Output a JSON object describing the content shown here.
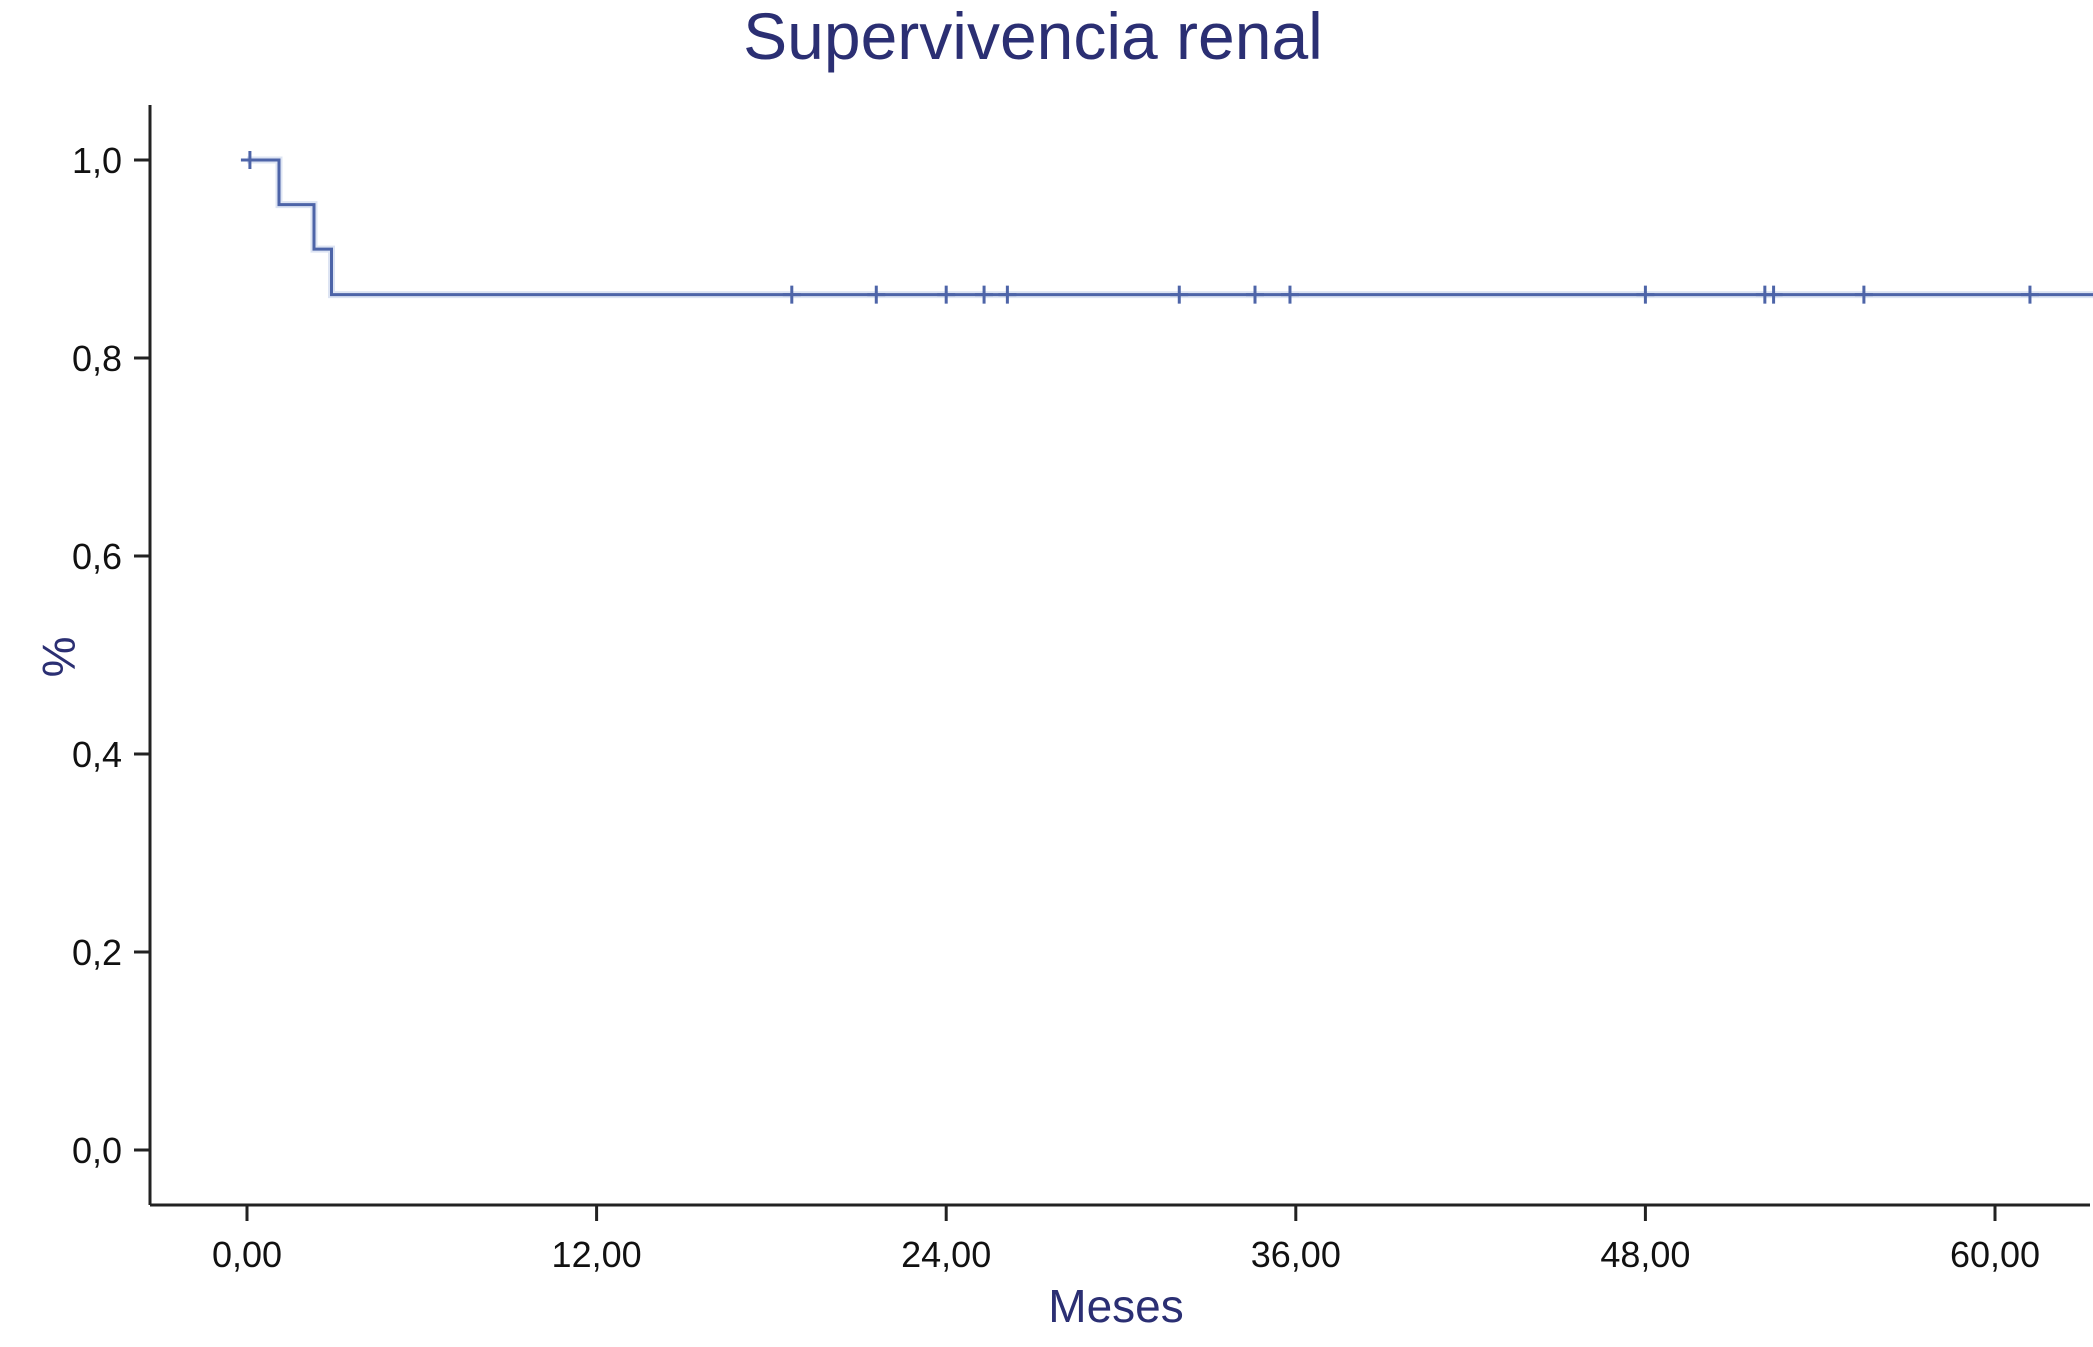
{
  "chart_data": {
    "type": "line",
    "title": "Supervivencia renal",
    "xlabel": "Meses",
    "ylabel": "%",
    "xlim": [
      -3.4,
      63.5
    ],
    "ylim": [
      -0.055,
      1.055
    ],
    "x_ticks": [
      0,
      12,
      24,
      36,
      48,
      60
    ],
    "x_tick_labels": [
      "0,00",
      "12,00",
      "24,00",
      "36,00",
      "48,00",
      "60,00"
    ],
    "y_ticks": [
      0,
      0.2,
      0.4,
      0.6,
      0.8,
      1.0
    ],
    "y_tick_labels": [
      "0,0",
      "0,2",
      "0,4",
      "0,6",
      "0,8",
      "1,0"
    ],
    "grid": false,
    "colors": {
      "line": "#4d64a8",
      "halo": "#9fb1dd",
      "title": "#2b2f73",
      "axis": "#222222"
    },
    "series": [
      {
        "step_points": [
          {
            "x": 0,
            "y": 1.0
          },
          {
            "x": 1.1,
            "y": 1.0
          },
          {
            "x": 1.1,
            "y": 0.955
          },
          {
            "x": 2.3,
            "y": 0.955
          },
          {
            "x": 2.3,
            "y": 0.91
          },
          {
            "x": 2.9,
            "y": 0.91
          },
          {
            "x": 2.9,
            "y": 0.864
          },
          {
            "x": 63.5,
            "y": 0.864
          }
        ],
        "censored": [
          {
            "x": 0.1,
            "y": 1.0
          },
          {
            "x": 18.7,
            "y": 0.864
          },
          {
            "x": 21.6,
            "y": 0.864
          },
          {
            "x": 24.0,
            "y": 0.864
          },
          {
            "x": 25.3,
            "y": 0.864
          },
          {
            "x": 26.1,
            "y": 0.864
          },
          {
            "x": 32.0,
            "y": 0.864
          },
          {
            "x": 34.6,
            "y": 0.864
          },
          {
            "x": 35.8,
            "y": 0.864
          },
          {
            "x": 48.0,
            "y": 0.864
          },
          {
            "x": 52.1,
            "y": 0.864
          },
          {
            "x": 52.4,
            "y": 0.864
          },
          {
            "x": 55.5,
            "y": 0.864
          },
          {
            "x": 61.2,
            "y": 0.864
          }
        ]
      }
    ]
  }
}
